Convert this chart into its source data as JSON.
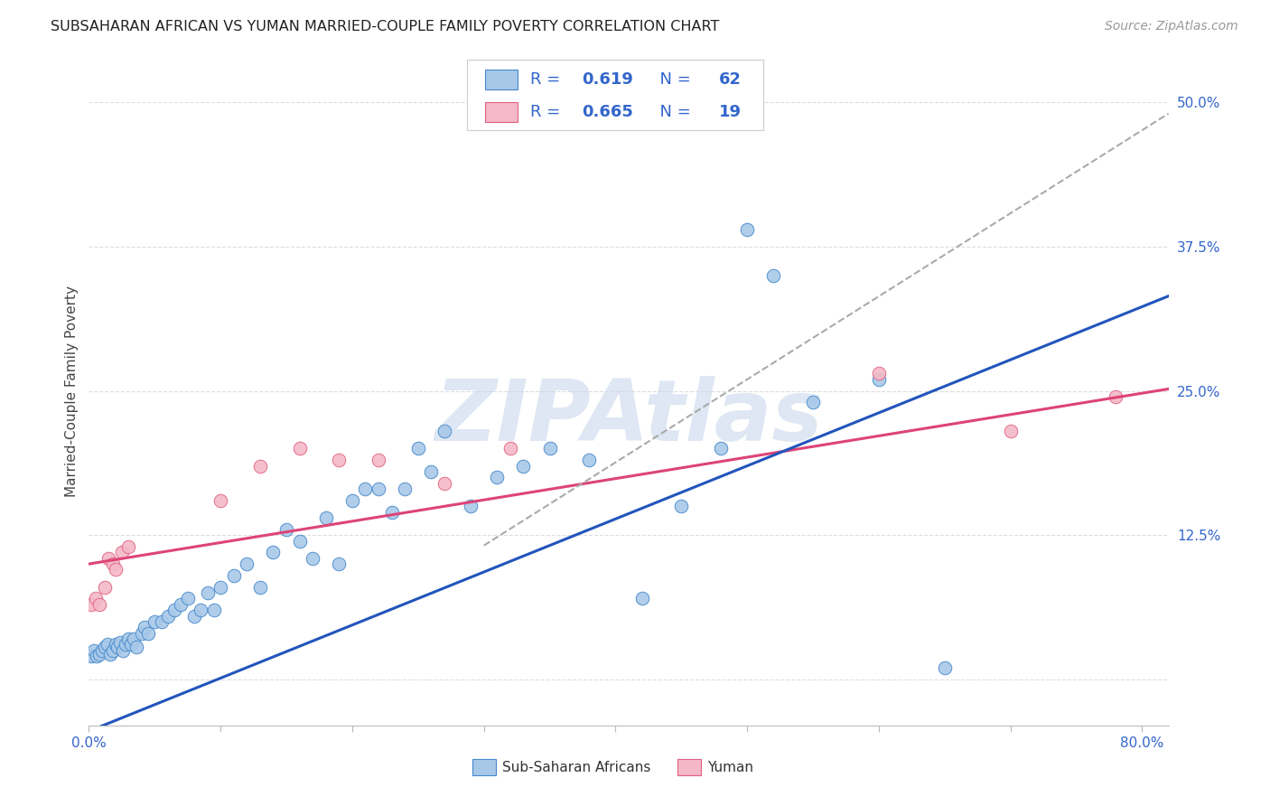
{
  "title": "SUBSAHARAN AFRICAN VS YUMAN MARRIED-COUPLE FAMILY POVERTY CORRELATION CHART",
  "source": "Source: ZipAtlas.com",
  "ylabel": "Married-Couple Family Poverty",
  "xlim": [
    0.0,
    0.82
  ],
  "ylim": [
    -0.04,
    0.54
  ],
  "xticks": [
    0.0,
    0.1,
    0.2,
    0.3,
    0.4,
    0.5,
    0.6,
    0.7,
    0.8
  ],
  "yticks": [
    0.0,
    0.125,
    0.25,
    0.375,
    0.5
  ],
  "blue_R": 0.619,
  "blue_N": 62,
  "pink_R": 0.665,
  "pink_N": 19,
  "blue_fill": "#a8c8e8",
  "pink_fill": "#f4b8c8",
  "blue_edge": "#4488cc",
  "pink_edge": "#e06080",
  "blue_line": "#2255bb",
  "pink_line": "#dd4477",
  "dash_color": "#aaaaaa",
  "text_blue": "#3366cc",
  "watermark": "ZIPAtlas",
  "watermark_color": "#c8d8ec",
  "bg": "#ffffff",
  "grid_color": "#dddddd",
  "blue_scatter_x": [
    0.002,
    0.004,
    0.006,
    0.008,
    0.01,
    0.012,
    0.014,
    0.016,
    0.018,
    0.02,
    0.022,
    0.024,
    0.026,
    0.028,
    0.03,
    0.032,
    0.034,
    0.036,
    0.04,
    0.042,
    0.045,
    0.05,
    0.055,
    0.06,
    0.065,
    0.07,
    0.075,
    0.08,
    0.085,
    0.09,
    0.095,
    0.1,
    0.11,
    0.12,
    0.13,
    0.14,
    0.15,
    0.16,
    0.17,
    0.18,
    0.19,
    0.2,
    0.21,
    0.22,
    0.23,
    0.24,
    0.25,
    0.26,
    0.27,
    0.29,
    0.31,
    0.33,
    0.35,
    0.38,
    0.42,
    0.45,
    0.48,
    0.5,
    0.52,
    0.55,
    0.6,
    0.65
  ],
  "blue_scatter_y": [
    0.02,
    0.025,
    0.02,
    0.022,
    0.025,
    0.028,
    0.03,
    0.022,
    0.025,
    0.03,
    0.028,
    0.032,
    0.025,
    0.03,
    0.035,
    0.03,
    0.035,
    0.028,
    0.04,
    0.045,
    0.04,
    0.05,
    0.05,
    0.055,
    0.06,
    0.065,
    0.07,
    0.055,
    0.06,
    0.075,
    0.06,
    0.08,
    0.09,
    0.1,
    0.08,
    0.11,
    0.13,
    0.12,
    0.105,
    0.14,
    0.1,
    0.155,
    0.165,
    0.165,
    0.145,
    0.165,
    0.2,
    0.18,
    0.215,
    0.15,
    0.175,
    0.185,
    0.2,
    0.19,
    0.07,
    0.15,
    0.2,
    0.39,
    0.35,
    0.24,
    0.26,
    0.01
  ],
  "pink_scatter_x": [
    0.002,
    0.005,
    0.008,
    0.012,
    0.015,
    0.018,
    0.02,
    0.025,
    0.03,
    0.1,
    0.13,
    0.16,
    0.19,
    0.22,
    0.27,
    0.32,
    0.6,
    0.7,
    0.78
  ],
  "pink_scatter_y": [
    0.065,
    0.07,
    0.065,
    0.08,
    0.105,
    0.1,
    0.095,
    0.11,
    0.115,
    0.155,
    0.185,
    0.2,
    0.19,
    0.19,
    0.17,
    0.2,
    0.265,
    0.215,
    0.245
  ],
  "blue_line_intercept": -0.045,
  "blue_line_slope": 0.46,
  "pink_line_intercept": 0.1,
  "pink_line_slope": 0.185,
  "dash_intercept": -0.1,
  "dash_slope": 0.72
}
